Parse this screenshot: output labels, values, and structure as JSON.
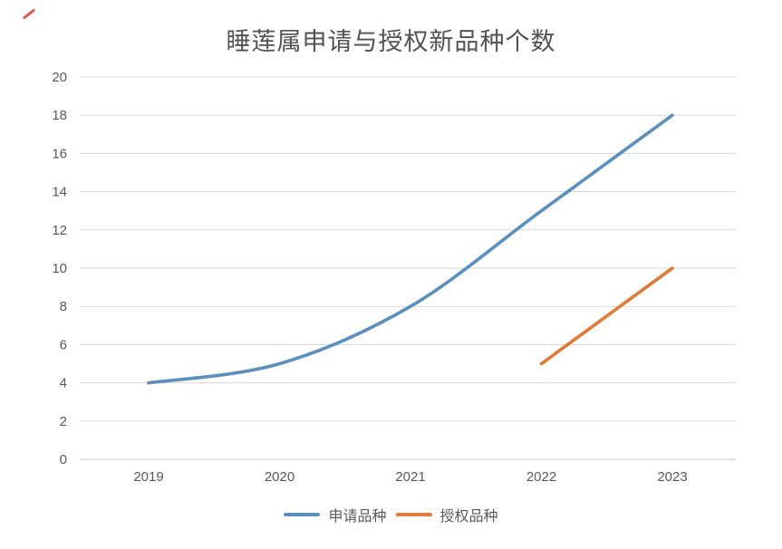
{
  "chart_data": {
    "type": "line",
    "title": "睡莲属申请与授权新品种个数",
    "categories": [
      "2019",
      "2020",
      "2021",
      "2022",
      "2023"
    ],
    "series": [
      {
        "name": "申请品种",
        "values": [
          4,
          5,
          8,
          13,
          18
        ],
        "color": "#5B8FBE",
        "smooth": true
      },
      {
        "name": "授权品种",
        "values": [
          null,
          null,
          null,
          5,
          10
        ],
        "color": "#E07C39",
        "smooth": false
      }
    ],
    "ylim": [
      0,
      20
    ],
    "ytick_step": 2,
    "yticks": [
      0,
      2,
      4,
      6,
      8,
      10,
      12,
      14,
      16,
      18,
      20
    ],
    "xlabel": "",
    "ylabel": "",
    "grid": true,
    "legend_position": "bottom",
    "colors": {
      "grid": "#D9D9D9",
      "axis": "#C6C6C6",
      "tick_label": "#595959",
      "title": "#525252",
      "legend_label": "#595959",
      "background": "#FFFFFF"
    }
  }
}
